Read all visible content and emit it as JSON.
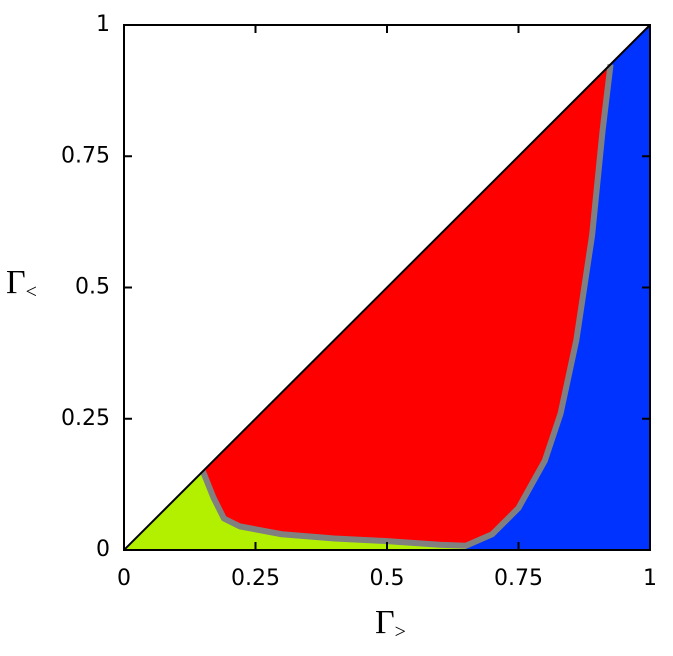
{
  "chart_data": {
    "type": "phase",
    "x_label_main": "Γ",
    "x_label_sub": ">",
    "y_label_main": "Γ",
    "y_label_sub": "<",
    "xlim": [
      0,
      1
    ],
    "ylim": [
      0,
      1
    ],
    "xticks": [
      0,
      0.25,
      0.5,
      0.75,
      1
    ],
    "yticks": [
      0,
      0.25,
      0.5,
      0.75,
      1
    ],
    "boundary_x": [
      0.15,
      0.17,
      0.19,
      0.22,
      0.3,
      0.4,
      0.5,
      0.6,
      0.65,
      0.7,
      0.75,
      0.8,
      0.83,
      0.86,
      0.89,
      0.91,
      0.925
    ],
    "boundary_y": [
      0.15,
      0.1,
      0.06,
      0.045,
      0.03,
      0.022,
      0.017,
      0.01,
      0.008,
      0.03,
      0.08,
      0.17,
      0.26,
      0.4,
      0.6,
      0.8,
      0.925
    ],
    "colors": {
      "left": "#b3f000",
      "middle": "#ff0000",
      "right": "#0033ff",
      "boundary": "#808080"
    }
  }
}
